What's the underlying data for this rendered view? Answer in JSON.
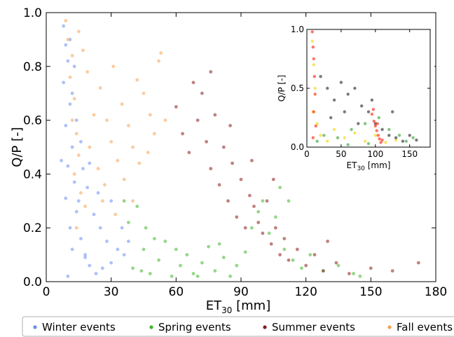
{
  "chart_data": [
    {
      "type": "scatter",
      "title": "",
      "xlabel": "ET",
      "xlabel_sub": "30",
      "xlabel_unit": " [mm]",
      "ylabel": "Q/P [-]",
      "xlim": [
        0,
        180
      ],
      "ylim": [
        0,
        1.0
      ],
      "xticks": [
        0,
        30,
        60,
        90,
        120,
        150,
        180
      ],
      "yticks": [
        0.0,
        0.2,
        0.4,
        0.6,
        0.8,
        1.0
      ],
      "xtick_labels": [
        "0",
        "30",
        "60",
        "90",
        "120",
        "150",
        "180"
      ],
      "ytick_labels": [
        "0.0",
        "0.2",
        "0.4",
        "0.6",
        "0.8",
        "1.0"
      ],
      "grid": false,
      "legend_position": "bottom",
      "series": [
        {
          "name": "Winter events",
          "color": "#6b8ef0",
          "points": [
            [
              8,
              0.95
            ],
            [
              9,
              0.88
            ],
            [
              10,
              0.82
            ],
            [
              8,
              0.74
            ],
            [
              11,
              0.66
            ],
            [
              9,
              0.58
            ],
            [
              12,
              0.5
            ],
            [
              10,
              0.43
            ],
            [
              13,
              0.37
            ],
            [
              9,
              0.31
            ],
            [
              14,
              0.26
            ],
            [
              11,
              0.2
            ],
            [
              16,
              0.16
            ],
            [
              12,
              0.12
            ],
            [
              18,
              0.09
            ],
            [
              20,
              0.06
            ],
            [
              23,
              0.03
            ],
            [
              10,
              0.02
            ],
            [
              26,
              0.05
            ],
            [
              30,
              0.07
            ],
            [
              15,
              0.3
            ],
            [
              17,
              0.42
            ],
            [
              19,
              0.35
            ],
            [
              22,
              0.25
            ],
            [
              25,
              0.2
            ],
            [
              28,
              0.15
            ],
            [
              33,
              0.12
            ],
            [
              36,
              0.1
            ],
            [
              12,
              0.7
            ],
            [
              14,
              0.6
            ],
            [
              7,
              0.45
            ],
            [
              16,
              0.52
            ],
            [
              20,
              0.44
            ],
            [
              24,
              0.33
            ],
            [
              30,
              0.3
            ],
            [
              35,
              0.2
            ],
            [
              38,
              0.15
            ],
            [
              11,
              0.9
            ],
            [
              13,
              0.8
            ],
            [
              18,
              0.1
            ]
          ]
        },
        {
          "name": "Spring events",
          "color": "#3fb62a",
          "points": [
            [
              40,
              0.05
            ],
            [
              45,
              0.12
            ],
            [
              48,
              0.03
            ],
            [
              52,
              0.08
            ],
            [
              55,
              0.15
            ],
            [
              58,
              0.02
            ],
            [
              62,
              0.06
            ],
            [
              65,
              0.1
            ],
            [
              68,
              0.03
            ],
            [
              72,
              0.07
            ],
            [
              75,
              0.13
            ],
            [
              78,
              0.04
            ],
            [
              82,
              0.09
            ],
            [
              85,
              0.02
            ],
            [
              88,
              0.06
            ],
            [
              92,
              0.11
            ],
            [
              95,
              0.2
            ],
            [
              98,
              0.26
            ],
            [
              100,
              0.3
            ],
            [
              103,
              0.18
            ],
            [
              106,
              0.24
            ],
            [
              110,
              0.12
            ],
            [
              114,
              0.08
            ],
            [
              118,
              0.05
            ],
            [
              122,
              0.1
            ],
            [
              128,
              0.04
            ],
            [
              135,
              0.06
            ],
            [
              142,
              0.03
            ],
            [
              38,
              0.22
            ],
            [
              42,
              0.28
            ],
            [
              46,
              0.2
            ],
            [
              50,
              0.16
            ],
            [
              36,
              0.3
            ],
            [
              44,
              0.04
            ],
            [
              60,
              0.12
            ],
            [
              70,
              0.02
            ],
            [
              80,
              0.14
            ],
            [
              108,
              0.35
            ],
            [
              112,
              0.3
            ],
            [
              145,
              0.02
            ]
          ]
        },
        {
          "name": "Summer events",
          "color": "#8b1a1a",
          "points": [
            [
              60,
              0.65
            ],
            [
              63,
              0.55
            ],
            [
              66,
              0.48
            ],
            [
              70,
              0.6
            ],
            [
              72,
              0.7
            ],
            [
              74,
              0.52
            ],
            [
              76,
              0.42
            ],
            [
              78,
              0.62
            ],
            [
              80,
              0.36
            ],
            [
              82,
              0.5
            ],
            [
              84,
              0.3
            ],
            [
              86,
              0.44
            ],
            [
              88,
              0.24
            ],
            [
              90,
              0.38
            ],
            [
              92,
              0.2
            ],
            [
              94,
              0.32
            ],
            [
              96,
              0.28
            ],
            [
              98,
              0.22
            ],
            [
              100,
              0.18
            ],
            [
              102,
              0.3
            ],
            [
              104,
              0.14
            ],
            [
              106,
              0.2
            ],
            [
              108,
              0.1
            ],
            [
              110,
              0.16
            ],
            [
              112,
              0.08
            ],
            [
              116,
              0.12
            ],
            [
              120,
              0.06
            ],
            [
              124,
              0.1
            ],
            [
              128,
              0.04
            ],
            [
              134,
              0.07
            ],
            [
              140,
              0.03
            ],
            [
              150,
              0.05
            ],
            [
              160,
              0.04
            ],
            [
              172,
              0.07
            ],
            [
              68,
              0.74
            ],
            [
              76,
              0.78
            ],
            [
              85,
              0.58
            ],
            [
              95,
              0.45
            ],
            [
              105,
              0.38
            ],
            [
              130,
              0.15
            ]
          ]
        },
        {
          "name": "Fall events",
          "color": "#f7a150",
          "points": [
            [
              9,
              0.97
            ],
            [
              10,
              0.9
            ],
            [
              12,
              0.84
            ],
            [
              11,
              0.76
            ],
            [
              13,
              0.68
            ],
            [
              12,
              0.6
            ],
            [
              14,
              0.55
            ],
            [
              15,
              0.47
            ],
            [
              13,
              0.4
            ],
            [
              16,
              0.33
            ],
            [
              18,
              0.28
            ],
            [
              20,
              0.5
            ],
            [
              22,
              0.62
            ],
            [
              25,
              0.72
            ],
            [
              28,
              0.6
            ],
            [
              30,
              0.52
            ],
            [
              33,
              0.45
            ],
            [
              35,
              0.66
            ],
            [
              38,
              0.58
            ],
            [
              40,
              0.5
            ],
            [
              43,
              0.44
            ],
            [
              45,
              0.7
            ],
            [
              48,
              0.62
            ],
            [
              50,
              0.55
            ],
            [
              52,
              0.82
            ],
            [
              55,
              0.6
            ],
            [
              17,
              0.86
            ],
            [
              19,
              0.78
            ],
            [
              24,
              0.42
            ],
            [
              27,
              0.36
            ],
            [
              31,
              0.8
            ],
            [
              36,
              0.38
            ],
            [
              42,
              0.75
            ],
            [
              47,
              0.48
            ],
            [
              53,
              0.85
            ],
            [
              14,
              0.2
            ],
            [
              26,
              0.3
            ],
            [
              32,
              0.25
            ],
            [
              40,
              0.3
            ],
            [
              15,
              0.93
            ]
          ]
        }
      ]
    },
    {
      "type": "scatter",
      "title": "",
      "xlabel": "ET",
      "xlabel_sub": "30",
      "xlabel_unit": " [mm]",
      "ylabel": "Q/P [-]",
      "xlim": [
        0,
        180
      ],
      "ylim": [
        0,
        1.0
      ],
      "xticks": [
        0,
        50,
        100,
        150
      ],
      "yticks": [
        0.0,
        0.5,
        1.0
      ],
      "xtick_labels": [
        "0",
        "50",
        "100",
        "150"
      ],
      "ytick_labels": [
        "0.0",
        "0.5",
        "1.0"
      ],
      "grid": false,
      "legend_position": "none",
      "series": [
        {
          "color": "#f2d400",
          "points": [
            [
              8,
              0.9
            ],
            [
              10,
              0.7
            ],
            [
              12,
              0.5
            ],
            [
              9,
              0.3
            ],
            [
              15,
              0.2
            ],
            [
              20,
              0.1
            ],
            [
              30,
              0.05
            ],
            [
              40,
              0.15
            ],
            [
              55,
              0.08
            ],
            [
              70,
              0.12
            ],
            [
              85,
              0.05
            ],
            [
              100,
              0.1
            ],
            [
              115,
              0.04
            ],
            [
              130,
              0.06
            ]
          ]
        },
        {
          "color": "#222222",
          "points": [
            [
              20,
              0.6
            ],
            [
              30,
              0.5
            ],
            [
              40,
              0.4
            ],
            [
              50,
              0.55
            ],
            [
              60,
              0.45
            ],
            [
              70,
              0.5
            ],
            [
              80,
              0.35
            ],
            [
              90,
              0.3
            ],
            [
              100,
              0.2
            ],
            [
              110,
              0.15
            ],
            [
              120,
              0.1
            ],
            [
              130,
              0.08
            ],
            [
              140,
              0.05
            ],
            [
              150,
              0.1
            ],
            [
              160,
              0.06
            ],
            [
              35,
              0.25
            ],
            [
              55,
              0.3
            ],
            [
              75,
              0.2
            ],
            [
              95,
              0.4
            ],
            [
              125,
              0.3
            ]
          ]
        },
        {
          "color": "#2e9e2e",
          "points": [
            [
              15,
              0.05
            ],
            [
              25,
              0.1
            ],
            [
              45,
              0.08
            ],
            [
              65,
              0.15
            ],
            [
              85,
              0.2
            ],
            [
              105,
              0.25
            ],
            [
              120,
              0.15
            ],
            [
              135,
              0.1
            ],
            [
              145,
              0.05
            ],
            [
              155,
              0.08
            ],
            [
              60,
              0.02
            ],
            [
              90,
              0.03
            ]
          ]
        },
        {
          "color": "#ff1a00",
          "points": [
            [
              8,
              0.98
            ],
            [
              9,
              0.85
            ],
            [
              10,
              0.75
            ],
            [
              11,
              0.6
            ],
            [
              12,
              0.45
            ],
            [
              10,
              0.3
            ],
            [
              13,
              0.18
            ],
            [
              9,
              0.08
            ],
            [
              95,
              0.28
            ],
            [
              98,
              0.22
            ],
            [
              100,
              0.18
            ],
            [
              102,
              0.14
            ],
            [
              104,
              0.1
            ],
            [
              106,
              0.07
            ],
            [
              108,
              0.04
            ],
            [
              97,
              0.32
            ],
            [
              103,
              0.2
            ],
            [
              110,
              0.06
            ]
          ]
        }
      ]
    }
  ]
}
